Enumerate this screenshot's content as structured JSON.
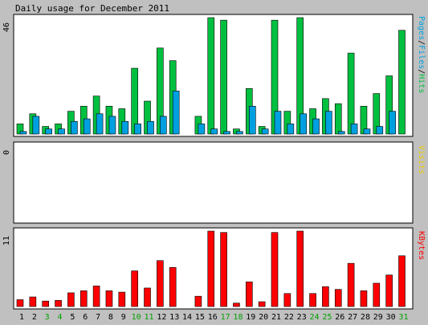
{
  "title": "Daily usage for December 2011",
  "colors": {
    "hits": "#00c040",
    "files": "#00a0e0",
    "visits": "#f0d000",
    "kbytes": "#ff0000",
    "pages": "#00a0e0",
    "weekend_label": "#00a000",
    "weekday_label": "#000000",
    "panel_bg": "#ffffff",
    "page_bg": "#c0c0c0"
  },
  "chart_data": [
    {
      "type": "bar",
      "title": "Daily usage for December 2011",
      "ylabel": "Pages/Files/Hits",
      "ylabel_parts": [
        "Pages",
        "/",
        "Files",
        "/",
        "Hits"
      ],
      "ymax_label": "46",
      "ylim": [
        0,
        46
      ],
      "categories": [
        "1",
        "2",
        "3",
        "4",
        "5",
        "6",
        "7",
        "8",
        "9",
        "10",
        "11",
        "12",
        "13",
        "14",
        "15",
        "16",
        "17",
        "18",
        "19",
        "20",
        "21",
        "22",
        "23",
        "24",
        "25",
        "26",
        "27",
        "28",
        "29",
        "30",
        "31"
      ],
      "series": [
        {
          "name": "Hits",
          "values": [
            4,
            8,
            3,
            4,
            9,
            11,
            15,
            11,
            10,
            26,
            13,
            34,
            29,
            0,
            7,
            46,
            45,
            2,
            18,
            3,
            45,
            9,
            46,
            10,
            14,
            12,
            32,
            11,
            16,
            23,
            41
          ]
        },
        {
          "name": "Files",
          "values": [
            1,
            7,
            2,
            2,
            5,
            6,
            8,
            7,
            5,
            4,
            5,
            7,
            17,
            0,
            4,
            2,
            1,
            1,
            11,
            2,
            9,
            4,
            8,
            6,
            9,
            1,
            4,
            2,
            3,
            9,
            0
          ]
        }
      ]
    },
    {
      "type": "bar",
      "ylabel": "Visits",
      "ymax_label": "0",
      "ylim": [
        0,
        1
      ],
      "categories": [
        "1",
        "2",
        "3",
        "4",
        "5",
        "6",
        "7",
        "8",
        "9",
        "10",
        "11",
        "12",
        "13",
        "14",
        "15",
        "16",
        "17",
        "18",
        "19",
        "20",
        "21",
        "22",
        "23",
        "24",
        "25",
        "26",
        "27",
        "28",
        "29",
        "30",
        "31"
      ],
      "series": [
        {
          "name": "Visits",
          "values": [
            0,
            0,
            0,
            0,
            0,
            0,
            0,
            0,
            0,
            0,
            0,
            0,
            0,
            0,
            0,
            0,
            0,
            0,
            0,
            0,
            0,
            0,
            0,
            0,
            0,
            0,
            0,
            0,
            0,
            0,
            0
          ]
        }
      ]
    },
    {
      "type": "bar",
      "ylabel": "KBytes",
      "ymax_label": "11",
      "ylim": [
        0,
        11
      ],
      "categories": [
        "1",
        "2",
        "3",
        "4",
        "5",
        "6",
        "7",
        "8",
        "9",
        "10",
        "11",
        "12",
        "13",
        "14",
        "15",
        "16",
        "17",
        "18",
        "19",
        "20",
        "21",
        "22",
        "23",
        "24",
        "25",
        "26",
        "27",
        "28",
        "29",
        "30",
        "31"
      ],
      "series": [
        {
          "name": "KBytes",
          "values": [
            1,
            1.4,
            0.8,
            0.9,
            2,
            2.3,
            3,
            2.3,
            2.1,
            5.2,
            2.7,
            6.7,
            5.7,
            0,
            1.5,
            11,
            10.8,
            0.5,
            3.6,
            0.7,
            10.8,
            1.9,
            11,
            1.9,
            2.9,
            2.5,
            6.3,
            2.3,
            3.4,
            4.6,
            7.4
          ]
        }
      ]
    }
  ],
  "x_labels_weekend": [
    "3",
    "4",
    "10",
    "11",
    "17",
    "18",
    "24",
    "25",
    "31"
  ]
}
